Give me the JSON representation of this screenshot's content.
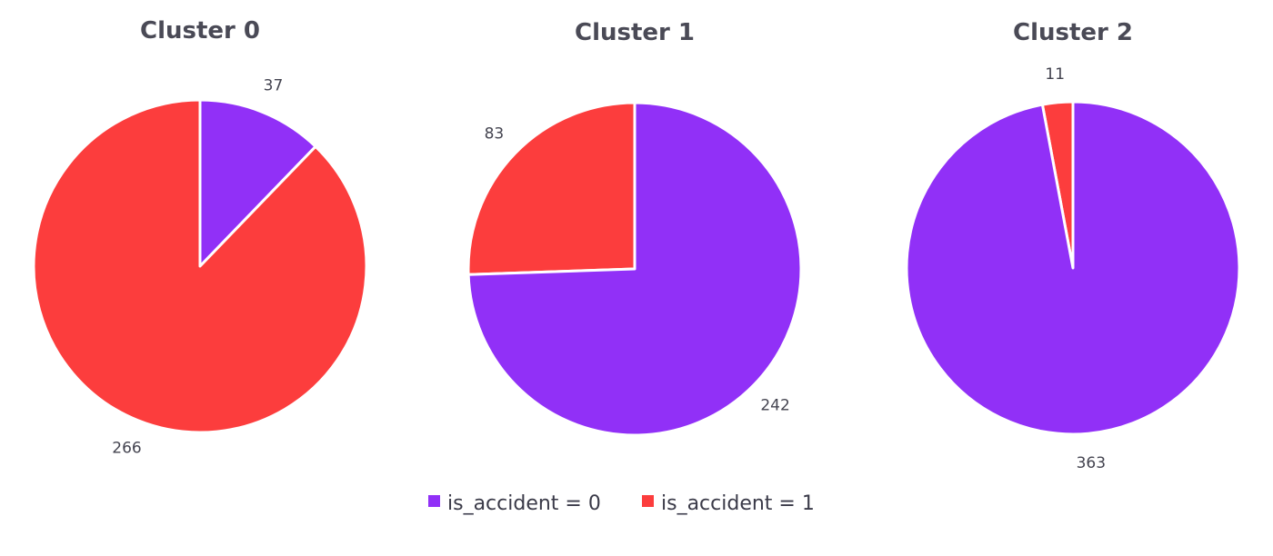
{
  "chart_data": [
    {
      "type": "pie",
      "title": "Cluster 0",
      "categories": [
        "is_accident = 0",
        "is_accident = 1"
      ],
      "values": [
        37,
        266
      ],
      "colors": [
        "#9130f7",
        "#fc3d3d"
      ]
    },
    {
      "type": "pie",
      "title": "Cluster 1",
      "categories": [
        "is_accident = 0",
        "is_accident = 1"
      ],
      "values": [
        242,
        83
      ],
      "colors": [
        "#9130f7",
        "#fc3d3d"
      ]
    },
    {
      "type": "pie",
      "title": "Cluster 2",
      "categories": [
        "is_accident = 0",
        "is_accident = 1"
      ],
      "values": [
        363,
        11
      ],
      "colors": [
        "#9130f7",
        "#fc3d3d"
      ]
    }
  ],
  "legend": {
    "placement": "bottom-center",
    "items": [
      {
        "label": "is_accident = 0",
        "color": "#9130f7"
      },
      {
        "label": "is_accident = 1",
        "color": "#fc3d3d"
      }
    ]
  }
}
